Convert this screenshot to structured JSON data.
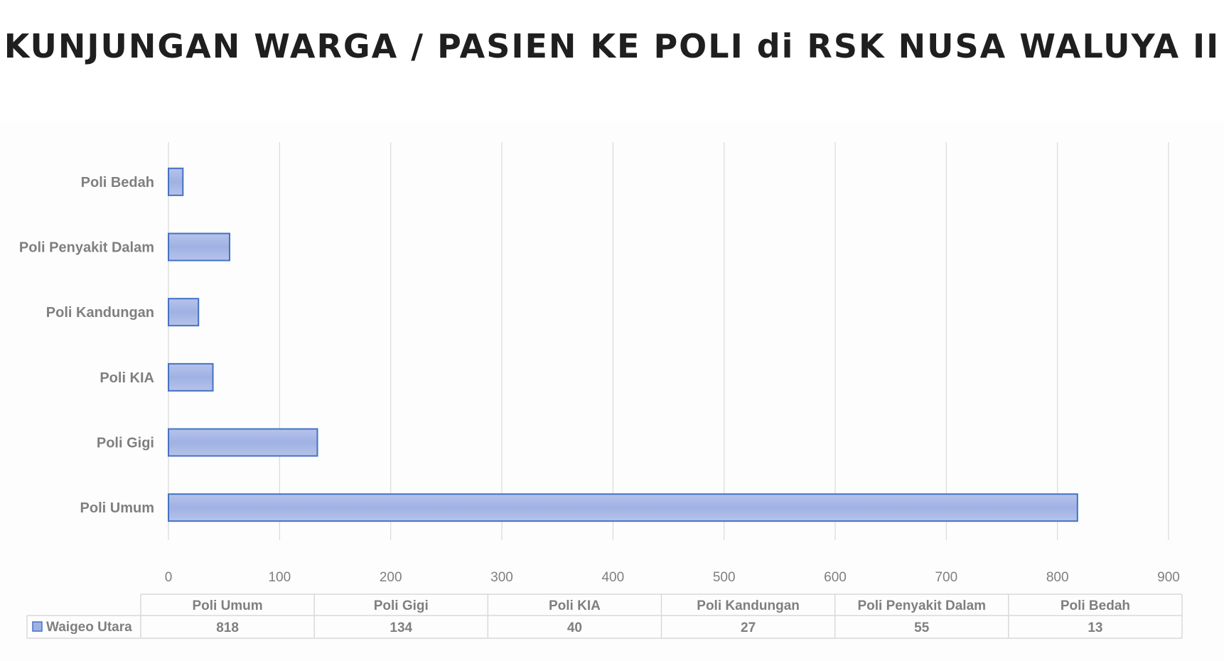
{
  "title": "KUNJUNGAN WARGA / PASIEN KE POLI di RSK NUSA WALUYA II",
  "chart_data": {
    "type": "bar",
    "orientation": "horizontal",
    "title": "KUNJUNGAN WARGA / PASIEN KE POLI di RSK NUSA WALUYA II",
    "categories": [
      "Poli Umum",
      "Poli Gigi",
      "Poli KIA",
      "Poli Kandungan",
      "Poli Penyakit Dalam",
      "Poli Bedah"
    ],
    "series": [
      {
        "name": "Waigeo Utara",
        "values": [
          818,
          134,
          40,
          27,
          55,
          13
        ],
        "color": "#9fb1e3",
        "border": "#4472c4"
      }
    ],
    "xlim": [
      0,
      900
    ],
    "xticks": [
      0,
      100,
      200,
      300,
      400,
      500,
      600,
      700,
      800,
      900
    ],
    "grid": true,
    "data_table": true,
    "colors": {
      "gridline": "#d9d9d9",
      "label": "#7f7f7f",
      "table_border": "#d9d9d9"
    }
  }
}
